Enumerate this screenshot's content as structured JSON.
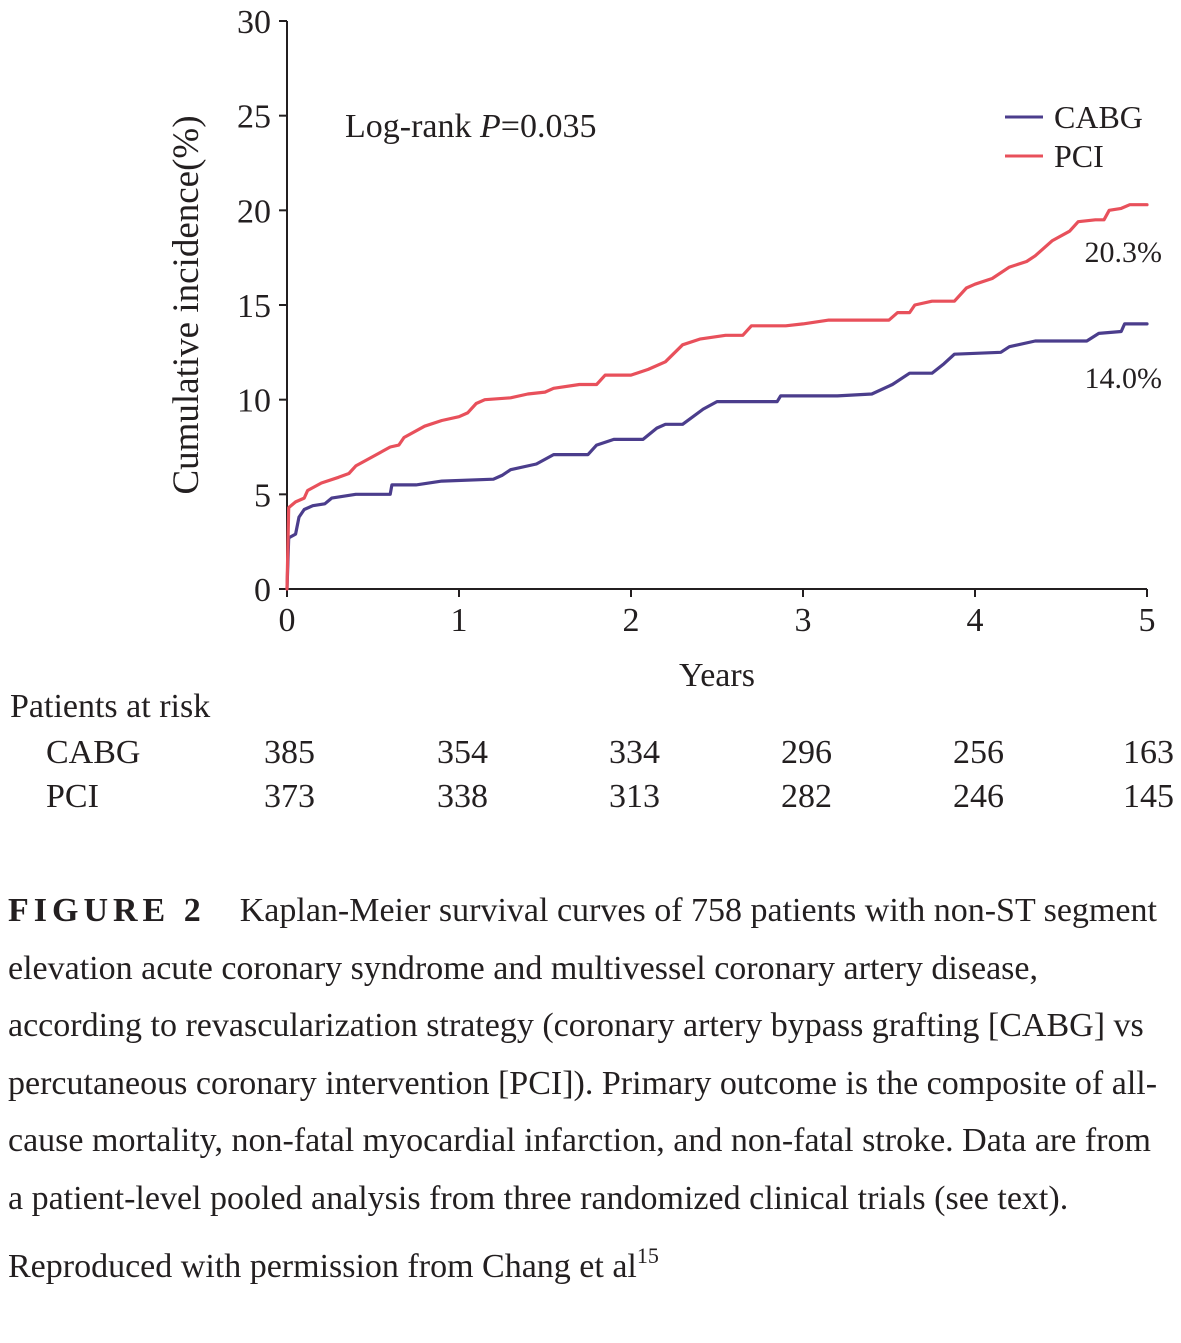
{
  "chart_data": {
    "type": "line",
    "ylabel": "Cumulative incidence(%)",
    "xlabel": "Years",
    "xlim": [
      0,
      5
    ],
    "ylim": [
      0,
      30
    ],
    "xticks": [
      "0",
      "1",
      "2",
      "3",
      "4",
      "5"
    ],
    "yticks": [
      "0",
      "5",
      "10",
      "15",
      "20",
      "25",
      "30"
    ],
    "grid": false,
    "legend_position": "top-right",
    "annotation": {
      "prefix": "Log-rank ",
      "italic": "P",
      "suffix": "=0.035"
    },
    "series": [
      {
        "name": "CABG",
        "color": "#4b3d8c",
        "end_label": "14.0%",
        "points": [
          [
            0,
            0
          ],
          [
            0.01,
            2.7
          ],
          [
            0.05,
            2.9
          ],
          [
            0.07,
            3.8
          ],
          [
            0.1,
            4.2
          ],
          [
            0.15,
            4.4
          ],
          [
            0.22,
            4.5
          ],
          [
            0.26,
            4.8
          ],
          [
            0.4,
            5.0
          ],
          [
            0.6,
            5.0
          ],
          [
            0.61,
            5.5
          ],
          [
            0.75,
            5.5
          ],
          [
            0.9,
            5.7
          ],
          [
            1.2,
            5.8
          ],
          [
            1.25,
            6.0
          ],
          [
            1.3,
            6.3
          ],
          [
            1.45,
            6.6
          ],
          [
            1.55,
            7.1
          ],
          [
            1.75,
            7.1
          ],
          [
            1.8,
            7.6
          ],
          [
            1.9,
            7.9
          ],
          [
            2.07,
            7.9
          ],
          [
            2.15,
            8.5
          ],
          [
            2.2,
            8.7
          ],
          [
            2.3,
            8.7
          ],
          [
            2.42,
            9.5
          ],
          [
            2.5,
            9.9
          ],
          [
            2.85,
            9.9
          ],
          [
            2.87,
            10.2
          ],
          [
            3.2,
            10.2
          ],
          [
            3.4,
            10.3
          ],
          [
            3.52,
            10.8
          ],
          [
            3.62,
            11.4
          ],
          [
            3.75,
            11.4
          ],
          [
            3.82,
            11.9
          ],
          [
            3.88,
            12.4
          ],
          [
            4.15,
            12.5
          ],
          [
            4.2,
            12.8
          ],
          [
            4.35,
            13.1
          ],
          [
            4.65,
            13.1
          ],
          [
            4.72,
            13.5
          ],
          [
            4.85,
            13.6
          ],
          [
            4.87,
            14.0
          ],
          [
            5.0,
            14.0
          ]
        ]
      },
      {
        "name": "PCI",
        "color": "#e8505b",
        "end_label": "20.3%",
        "points": [
          [
            0,
            0
          ],
          [
            0.01,
            4.3
          ],
          [
            0.05,
            4.6
          ],
          [
            0.1,
            4.8
          ],
          [
            0.12,
            5.2
          ],
          [
            0.2,
            5.6
          ],
          [
            0.3,
            5.9
          ],
          [
            0.36,
            6.1
          ],
          [
            0.4,
            6.5
          ],
          [
            0.44,
            6.7
          ],
          [
            0.5,
            7.0
          ],
          [
            0.6,
            7.5
          ],
          [
            0.65,
            7.6
          ],
          [
            0.68,
            8.0
          ],
          [
            0.8,
            8.6
          ],
          [
            0.9,
            8.9
          ],
          [
            1.0,
            9.1
          ],
          [
            1.05,
            9.3
          ],
          [
            1.1,
            9.8
          ],
          [
            1.15,
            10.0
          ],
          [
            1.3,
            10.1
          ],
          [
            1.4,
            10.3
          ],
          [
            1.5,
            10.4
          ],
          [
            1.55,
            10.6
          ],
          [
            1.7,
            10.8
          ],
          [
            1.8,
            10.8
          ],
          [
            1.85,
            11.3
          ],
          [
            2.0,
            11.3
          ],
          [
            2.1,
            11.6
          ],
          [
            2.2,
            12.0
          ],
          [
            2.3,
            12.9
          ],
          [
            2.4,
            13.2
          ],
          [
            2.55,
            13.4
          ],
          [
            2.65,
            13.4
          ],
          [
            2.7,
            13.9
          ],
          [
            2.9,
            13.9
          ],
          [
            3.0,
            14.0
          ],
          [
            3.15,
            14.2
          ],
          [
            3.5,
            14.2
          ],
          [
            3.55,
            14.6
          ],
          [
            3.62,
            14.6
          ],
          [
            3.65,
            15.0
          ],
          [
            3.75,
            15.2
          ],
          [
            3.88,
            15.2
          ],
          [
            3.95,
            15.9
          ],
          [
            4.0,
            16.1
          ],
          [
            4.1,
            16.4
          ],
          [
            4.2,
            17.0
          ],
          [
            4.3,
            17.3
          ],
          [
            4.35,
            17.6
          ],
          [
            4.4,
            18.0
          ],
          [
            4.45,
            18.4
          ],
          [
            4.55,
            18.9
          ],
          [
            4.6,
            19.4
          ],
          [
            4.7,
            19.5
          ],
          [
            4.75,
            19.5
          ],
          [
            4.78,
            20.0
          ],
          [
            4.85,
            20.1
          ],
          [
            4.9,
            20.3
          ],
          [
            5.0,
            20.3
          ]
        ]
      }
    ]
  },
  "risk_table": {
    "title": "Patients at risk",
    "rows": [
      {
        "label": "CABG",
        "values": [
          "385",
          "354",
          "334",
          "296",
          "256",
          "163"
        ]
      },
      {
        "label": "PCI",
        "values": [
          "373",
          "338",
          "313",
          "282",
          "246",
          "145"
        ]
      }
    ]
  },
  "caption": {
    "label": "FIGURE 2",
    "text": "Kaplan-Meier survival curves of 758 patients with non-ST segment elevation acute coronary syndrome and multivessel coronary artery disease, according to revascularization strategy (coronary artery bypass grafting [CABG] vs percutaneous coronary intervention [PCI]). Primary outcome is the composite of all-cause mortality, non-fatal myocardial infarction, and non-fatal stroke. Data are from a patient-level pooled analysis from three randomized clinical trials (see text). Reproduced with permission from Chang et al",
    "ref": "15"
  }
}
